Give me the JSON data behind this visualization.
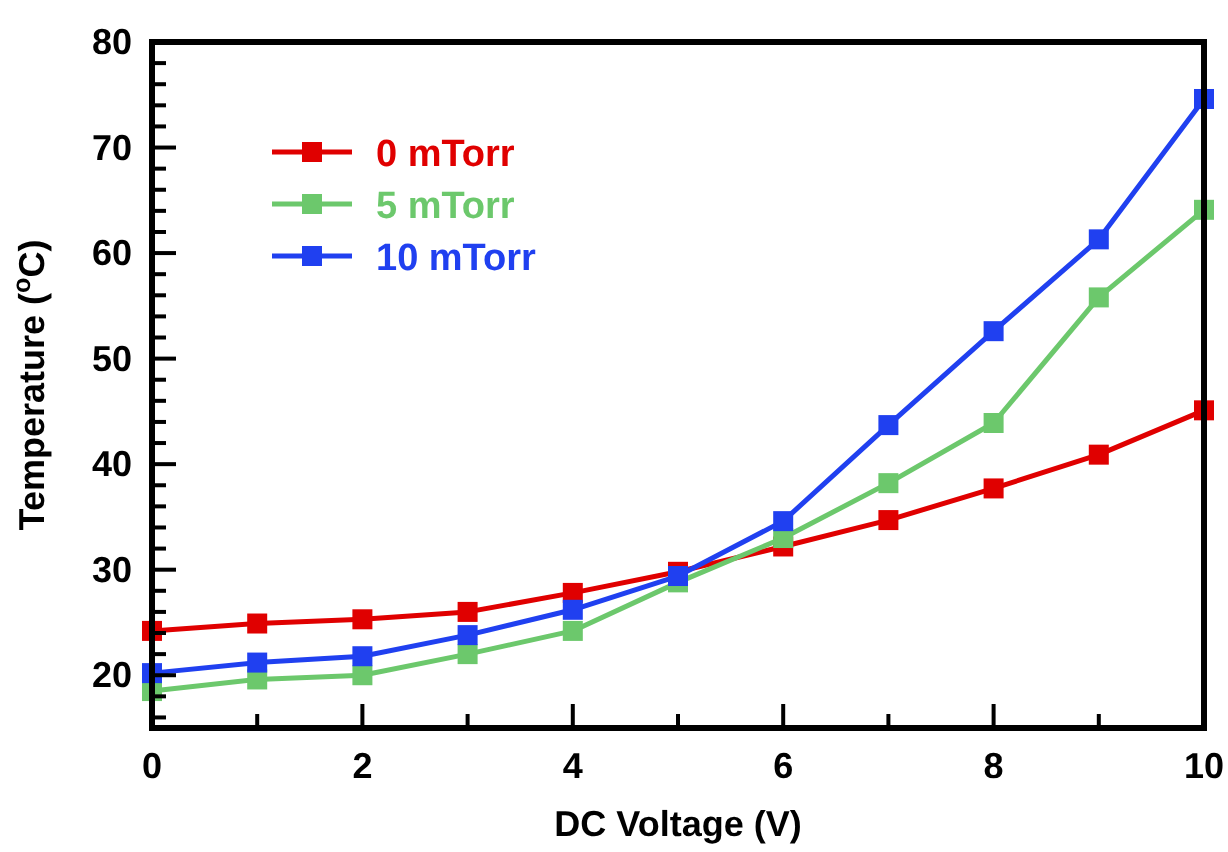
{
  "chart_data": {
    "type": "line",
    "xlabel": "DC Voltage (V)",
    "ylabel": "Temperature ($^{o}$C)",
    "x": [
      0,
      1,
      2,
      3,
      4,
      5,
      6,
      7,
      8,
      9,
      10
    ],
    "series": [
      {
        "name": "0 mTorr",
        "color": "#e00000",
        "values": [
          24.2,
          24.9,
          25.3,
          26.0,
          27.8,
          29.8,
          32.2,
          34.7,
          37.7,
          40.9,
          45.1
        ]
      },
      {
        "name": "5 mTorr",
        "color": "#6cc86c",
        "values": [
          18.5,
          19.6,
          20.0,
          22.0,
          24.2,
          28.8,
          33.0,
          38.2,
          43.9,
          55.8,
          64.1
        ]
      },
      {
        "name": "10 mTorr",
        "color": "#2040f0",
        "values": [
          20.2,
          21.2,
          21.8,
          23.8,
          26.2,
          29.4,
          34.6,
          43.7,
          52.6,
          61.3,
          74.6
        ]
      }
    ],
    "xlim": [
      0,
      10
    ],
    "xticks": [
      0,
      {
        "value": 1,
        "label": null
      },
      2,
      {
        "value": 3,
        "label": null
      },
      4,
      {
        "value": 5,
        "label": null
      },
      6,
      {
        "value": 7,
        "label": null
      },
      8,
      {
        "value": 9,
        "label": null
      },
      10
    ],
    "ylim": [
      15,
      80
    ],
    "yticks": [
      {
        "value": 16,
        "label": null
      },
      {
        "value": 18,
        "label": null
      },
      20,
      {
        "value": 22,
        "label": null
      },
      {
        "value": 24,
        "label": null
      },
      {
        "value": 26,
        "label": null
      },
      {
        "value": 28,
        "label": null
      },
      30,
      {
        "value": 32,
        "label": null
      },
      {
        "value": 34,
        "label": null
      },
      {
        "value": 36,
        "label": null
      },
      {
        "value": 38,
        "label": null
      },
      40,
      {
        "value": 42,
        "label": null
      },
      {
        "value": 44,
        "label": null
      },
      {
        "value": 46,
        "label": null
      },
      {
        "value": 48,
        "label": null
      },
      50,
      {
        "value": 52,
        "label": null
      },
      {
        "value": 54,
        "label": null
      },
      {
        "value": 56,
        "label": null
      },
      {
        "value": 58,
        "label": null
      },
      60,
      {
        "value": 62,
        "label": null
      },
      {
        "value": 64,
        "label": null
      },
      {
        "value": 66,
        "label": null
      },
      {
        "value": 68,
        "label": null
      },
      70,
      {
        "value": 72,
        "label": null
      },
      {
        "value": 74,
        "label": null
      },
      {
        "value": 76,
        "label": null
      },
      {
        "value": 78,
        "label": null
      },
      80
    ],
    "marker": "square",
    "line_style": "solid",
    "legend": "top left",
    "grid": false
  }
}
